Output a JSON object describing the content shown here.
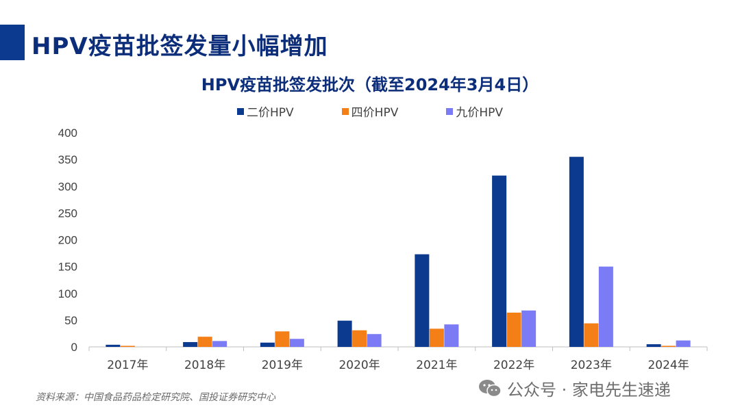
{
  "page_title": "HPV疫苗批签发量小幅增加",
  "source": "资料来源：中国食品药品检定研究院、国投证券研究中心",
  "watermark": "公众号 · 家电先生速递",
  "colors": {
    "bivalent": "#0b3a8f",
    "quadrivalent": "#f57f17",
    "nonavalent": "#7b7bf5",
    "title": "#0b2d7a"
  },
  "chart_data": {
    "type": "bar",
    "title": "HPV疫苗批签发批次（截至2024年3月4日）",
    "categories": [
      "2017年",
      "2018年",
      "2019年",
      "2020年",
      "2021年",
      "2022年",
      "2023年",
      "2024年"
    ],
    "series": [
      {
        "name": "二价HPV",
        "values": [
          4,
          9,
          8,
          49,
          173,
          320,
          355,
          5
        ]
      },
      {
        "name": "四价HPV",
        "values": [
          2,
          19,
          29,
          31,
          34,
          64,
          44,
          2
        ]
      },
      {
        "name": "九价HPV",
        "values": [
          0,
          11,
          15,
          24,
          42,
          68,
          150,
          12
        ]
      }
    ],
    "ylim": [
      0,
      400
    ],
    "yticks": [
      0,
      50,
      100,
      150,
      200,
      250,
      300,
      350,
      400
    ],
    "xlabel": "",
    "ylabel": "",
    "legend": "top-center",
    "grid": false
  }
}
